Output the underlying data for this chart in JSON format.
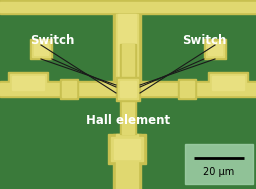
{
  "bg_color": "#3a7a3a",
  "yellow_outer": "#c8c050",
  "yellow_inner": "#e0d870",
  "yellow_bright": "#e8e080",
  "wire_color": "#1a1a1a",
  "text_color": "white",
  "scale_box_color": "#a0d0a8",
  "label_switch_left": "Switch",
  "label_switch_right": "Switch",
  "label_hall": "Hall element",
  "scale_bar_label": "20 μm",
  "fig_width": 2.56,
  "fig_height": 1.89,
  "dpi": 100
}
